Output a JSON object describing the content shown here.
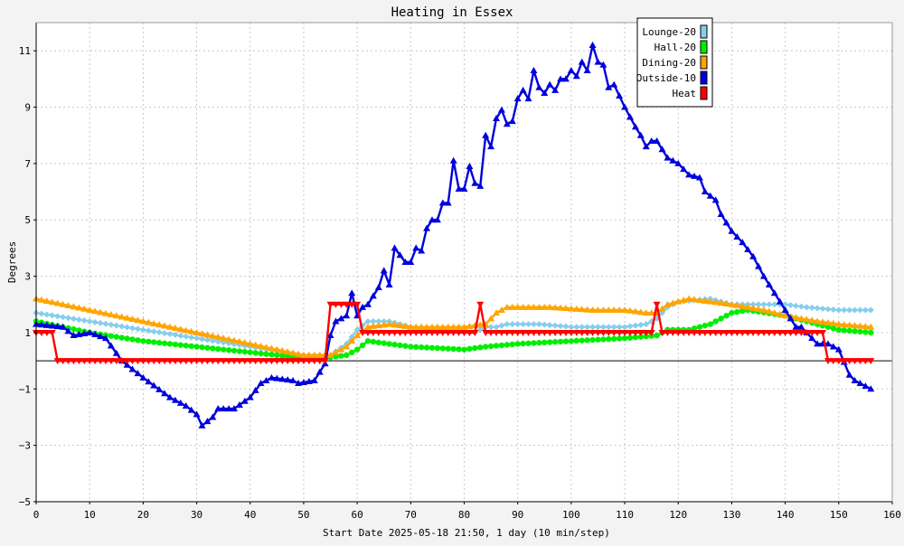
{
  "chart_data": {
    "type": "line",
    "title": "Heating in Essex",
    "xlabel": "Start Date 2025-05-18 21:50, 1 day (10 min/step)",
    "ylabel": "Degrees",
    "xlim": [
      0,
      160
    ],
    "ylim": [
      -5,
      12
    ],
    "xticks": [
      0,
      10,
      20,
      30,
      40,
      50,
      60,
      70,
      80,
      90,
      100,
      110,
      120,
      130,
      140,
      150,
      160
    ],
    "yticks": [
      -5,
      -3,
      -1,
      1,
      3,
      5,
      7,
      9,
      11
    ],
    "grid": true,
    "legend_position": "top-right",
    "series": [
      {
        "name": "Lounge-20",
        "color": "#87ceeb",
        "marker": "diamond",
        "points": [
          [
            0,
            1.7
          ],
          [
            10,
            1.4
          ],
          [
            20,
            1.1
          ],
          [
            30,
            0.8
          ],
          [
            40,
            0.5
          ],
          [
            50,
            0.2
          ],
          [
            55,
            0.2
          ],
          [
            58,
            0.6
          ],
          [
            60,
            1.1
          ],
          [
            62,
            1.4
          ],
          [
            66,
            1.4
          ],
          [
            70,
            1.2
          ],
          [
            80,
            1.0
          ],
          [
            82,
            1.0
          ],
          [
            84,
            1.2
          ],
          [
            86,
            1.2
          ],
          [
            88,
            1.3
          ],
          [
            90,
            1.3
          ],
          [
            94,
            1.3
          ],
          [
            100,
            1.2
          ],
          [
            110,
            1.2
          ],
          [
            114,
            1.3
          ],
          [
            116,
            1.5
          ],
          [
            118,
            1.9
          ],
          [
            120,
            2.1
          ],
          [
            126,
            2.2
          ],
          [
            130,
            2.0
          ],
          [
            140,
            2.0
          ],
          [
            144,
            1.9
          ],
          [
            150,
            1.8
          ],
          [
            156,
            1.8
          ]
        ]
      },
      {
        "name": "Hall-20",
        "color": "#00ee00",
        "marker": "circle",
        "points": [
          [
            0,
            1.4
          ],
          [
            10,
            1.0
          ],
          [
            20,
            0.7
          ],
          [
            30,
            0.5
          ],
          [
            40,
            0.3
          ],
          [
            50,
            0.1
          ],
          [
            54,
            0.1
          ],
          [
            58,
            0.2
          ],
          [
            60,
            0.4
          ],
          [
            62,
            0.7
          ],
          [
            66,
            0.6
          ],
          [
            70,
            0.5
          ],
          [
            80,
            0.4
          ],
          [
            84,
            0.5
          ],
          [
            90,
            0.6
          ],
          [
            100,
            0.7
          ],
          [
            110,
            0.8
          ],
          [
            116,
            0.9
          ],
          [
            118,
            1.1
          ],
          [
            122,
            1.1
          ],
          [
            126,
            1.3
          ],
          [
            130,
            1.7
          ],
          [
            133,
            1.8
          ],
          [
            140,
            1.6
          ],
          [
            144,
            1.4
          ],
          [
            150,
            1.1
          ],
          [
            156,
            1.0
          ]
        ]
      },
      {
        "name": "Dining-20",
        "color": "#ffa500",
        "marker": "triangle-up",
        "points": [
          [
            0,
            2.2
          ],
          [
            10,
            1.8
          ],
          [
            20,
            1.4
          ],
          [
            30,
            1.0
          ],
          [
            40,
            0.6
          ],
          [
            50,
            0.2
          ],
          [
            55,
            0.2
          ],
          [
            58,
            0.5
          ],
          [
            60,
            0.9
          ],
          [
            62,
            1.2
          ],
          [
            66,
            1.3
          ],
          [
            70,
            1.2
          ],
          [
            80,
            1.2
          ],
          [
            84,
            1.3
          ],
          [
            86,
            1.7
          ],
          [
            88,
            1.9
          ],
          [
            90,
            1.9
          ],
          [
            96,
            1.9
          ],
          [
            104,
            1.8
          ],
          [
            110,
            1.8
          ],
          [
            114,
            1.7
          ],
          [
            116,
            1.7
          ],
          [
            118,
            2.0
          ],
          [
            122,
            2.2
          ],
          [
            126,
            2.1
          ],
          [
            130,
            2.0
          ],
          [
            136,
            1.8
          ],
          [
            140,
            1.6
          ],
          [
            146,
            1.4
          ],
          [
            150,
            1.3
          ],
          [
            156,
            1.2
          ]
        ]
      },
      {
        "name": "Outside-10",
        "color": "#0000dd",
        "marker": "triangle-up",
        "points": [
          [
            0,
            1.3
          ],
          [
            5,
            1.2
          ],
          [
            7,
            0.9
          ],
          [
            10,
            1.0
          ],
          [
            13,
            0.8
          ],
          [
            16,
            0.0
          ],
          [
            20,
            -0.6
          ],
          [
            25,
            -1.3
          ],
          [
            28,
            -1.6
          ],
          [
            30,
            -1.9
          ],
          [
            31,
            -2.3
          ],
          [
            33,
            -2.0
          ],
          [
            34,
            -1.7
          ],
          [
            37,
            -1.7
          ],
          [
            40,
            -1.3
          ],
          [
            42,
            -0.8
          ],
          [
            44,
            -0.6
          ],
          [
            48,
            -0.7
          ],
          [
            49,
            -0.8
          ],
          [
            52,
            -0.7
          ],
          [
            54,
            -0.1
          ],
          [
            55,
            0.9
          ],
          [
            56,
            1.4
          ],
          [
            58,
            1.6
          ],
          [
            59,
            2.4
          ],
          [
            60,
            1.6
          ],
          [
            61,
            1.9
          ],
          [
            62,
            2.0
          ],
          [
            64,
            2.6
          ],
          [
            65,
            3.2
          ],
          [
            66,
            2.7
          ],
          [
            67,
            4.0
          ],
          [
            69,
            3.5
          ],
          [
            70,
            3.5
          ],
          [
            71,
            4.0
          ],
          [
            72,
            3.9
          ],
          [
            73,
            4.7
          ],
          [
            74,
            5.0
          ],
          [
            75,
            5.0
          ],
          [
            76,
            5.6
          ],
          [
            77,
            5.6
          ],
          [
            78,
            7.1
          ],
          [
            79,
            6.1
          ],
          [
            80,
            6.1
          ],
          [
            81,
            6.9
          ],
          [
            82,
            6.3
          ],
          [
            83,
            6.2
          ],
          [
            84,
            8.0
          ],
          [
            85,
            7.6
          ],
          [
            86,
            8.6
          ],
          [
            87,
            8.9
          ],
          [
            88,
            8.4
          ],
          [
            89,
            8.5
          ],
          [
            90,
            9.3
          ],
          [
            91,
            9.6
          ],
          [
            92,
            9.3
          ],
          [
            93,
            10.3
          ],
          [
            94,
            9.7
          ],
          [
            95,
            9.5
          ],
          [
            96,
            9.8
          ],
          [
            97,
            9.6
          ],
          [
            98,
            10.0
          ],
          [
            99,
            10.0
          ],
          [
            100,
            10.3
          ],
          [
            101,
            10.1
          ],
          [
            102,
            10.6
          ],
          [
            103,
            10.3
          ],
          [
            104,
            11.2
          ],
          [
            105,
            10.6
          ],
          [
            106,
            10.5
          ],
          [
            107,
            9.7
          ],
          [
            108,
            9.8
          ],
          [
            110,
            9.0
          ],
          [
            112,
            8.3
          ],
          [
            113,
            8.0
          ],
          [
            114,
            7.6
          ],
          [
            115,
            7.8
          ],
          [
            116,
            7.8
          ],
          [
            118,
            7.2
          ],
          [
            120,
            7.0
          ],
          [
            122,
            6.6
          ],
          [
            124,
            6.5
          ],
          [
            125,
            6.0
          ],
          [
            127,
            5.7
          ],
          [
            128,
            5.2
          ],
          [
            130,
            4.6
          ],
          [
            132,
            4.2
          ],
          [
            134,
            3.7
          ],
          [
            136,
            3.0
          ],
          [
            138,
            2.4
          ],
          [
            140,
            1.8
          ],
          [
            142,
            1.2
          ],
          [
            143,
            1.2
          ],
          [
            145,
            0.8
          ],
          [
            146,
            0.6
          ],
          [
            148,
            0.6
          ],
          [
            150,
            0.4
          ],
          [
            152,
            -0.5
          ],
          [
            153,
            -0.7
          ],
          [
            154,
            -0.8
          ],
          [
            156,
            -1.0
          ]
        ]
      },
      {
        "name": "Heat",
        "color": "#ff0000",
        "marker": "triangle-down",
        "points": [
          [
            0,
            1
          ],
          [
            3,
            1
          ],
          [
            4,
            0
          ],
          [
            54,
            0
          ],
          [
            55,
            2
          ],
          [
            60,
            2
          ],
          [
            61,
            1
          ],
          [
            82,
            1
          ],
          [
            83,
            2
          ],
          [
            84,
            1
          ],
          [
            115,
            1
          ],
          [
            116,
            2
          ],
          [
            117,
            1
          ],
          [
            147,
            1
          ],
          [
            148,
            0
          ],
          [
            156,
            0
          ]
        ]
      }
    ]
  }
}
